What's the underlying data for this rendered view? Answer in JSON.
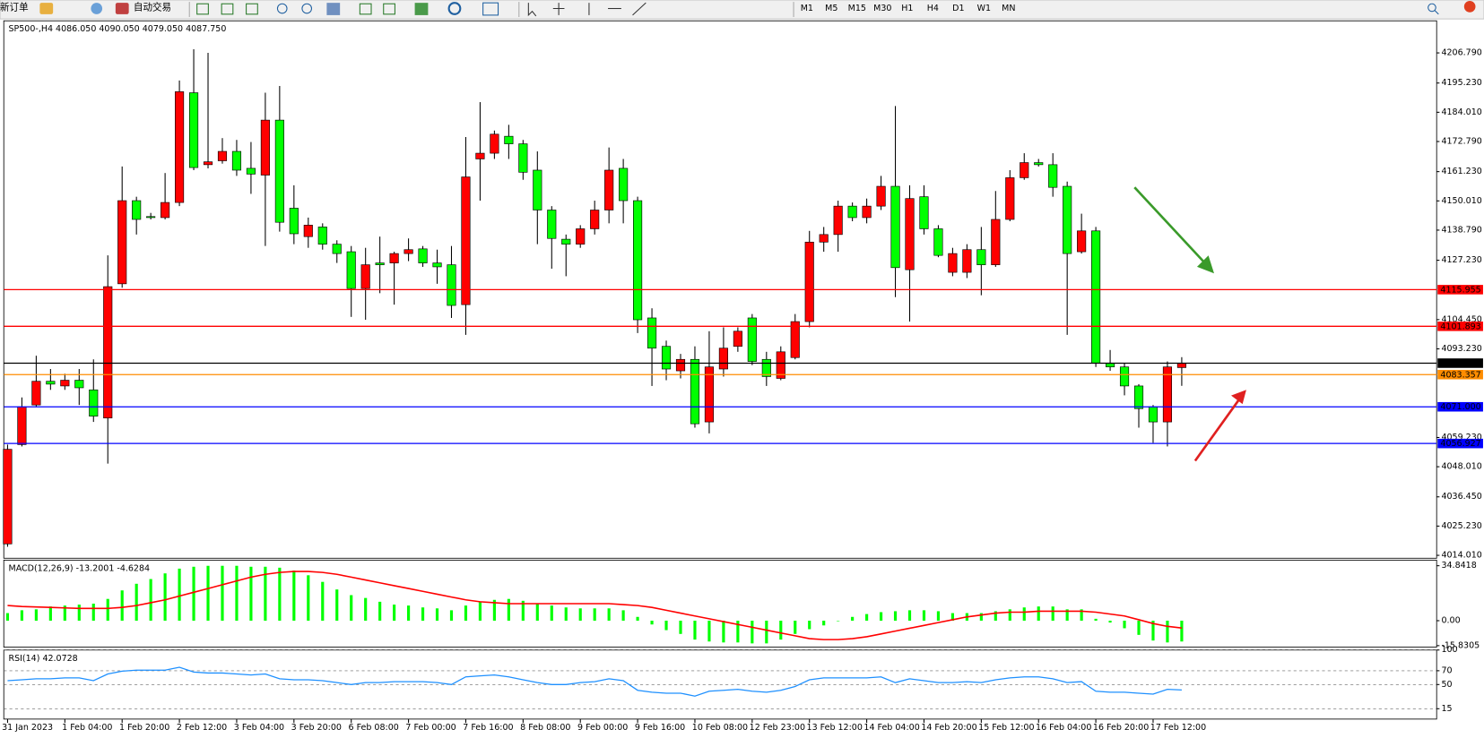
{
  "toolbar": {
    "new_order": "新订单",
    "auto_trading": "自动交易",
    "periods": [
      "M1",
      "M5",
      "M15",
      "M30",
      "H1",
      "H4",
      "D1",
      "W1",
      "MN"
    ]
  },
  "chart_data": [
    {
      "type": "candlestick",
      "title": "SP500-,H4  4086.050 4090.050 4079.050 4087.750",
      "categories": [
        "31 Jan 2023",
        null,
        null,
        null,
        "1 Feb 04:00",
        null,
        null,
        null,
        "1 Feb 20:00",
        null,
        null,
        null,
        "2 Feb 12:00",
        null,
        null,
        null,
        "3 Feb 04:00",
        null,
        null,
        null,
        "3 Feb 20:00",
        null,
        null,
        null,
        "6 Feb 08:00",
        null,
        null,
        null,
        "7 Feb 00:00",
        null,
        null,
        null,
        "7 Feb 16:00",
        null,
        null,
        null,
        "8 Feb 08:00",
        null,
        null,
        null,
        "9 Feb 00:00",
        null,
        null,
        null,
        "9 Feb 16:00",
        null,
        null,
        null,
        "10 Feb 08:00",
        null,
        null,
        null,
        "12 Feb 23:00",
        null,
        null,
        null,
        "13 Feb 12:00",
        null,
        null,
        null,
        "14 Feb 04:00",
        null,
        null,
        null,
        "14 Feb 20:00",
        null,
        null,
        null,
        "15 Feb 12:00",
        null,
        null,
        null,
        "16 Feb 04:00",
        null,
        null,
        null,
        "16 Feb 20:00",
        null,
        null,
        null,
        "17 Feb 12:00",
        null,
        null
      ],
      "open": [
        4018.4,
        4056.5,
        4071.7,
        4080.8,
        4079.0,
        4081.2,
        4077.5,
        4066.7,
        4118.2,
        4150.1,
        4144.0,
        4143.6,
        4149.4,
        4191.5,
        4163.9,
        4165.4,
        4169.0,
        4162.5,
        4159.9,
        4181.0,
        4147.2,
        4136.3,
        4140.0,
        4133.4,
        4130.5,
        4116.4,
        4126.2,
        4126.2,
        4129.8,
        4131.6,
        4126.2,
        4125.5,
        4110.2,
        4166.1,
        4168.3,
        4174.8,
        4171.9,
        4161.8,
        4146.5,
        4135.3,
        4133.4,
        4139.3,
        4146.5,
        4162.5,
        4150.1,
        4105.1,
        4094.2,
        4084.8,
        4089.2,
        4065.2,
        4085.5,
        4094.2,
        4105.1,
        4089.2,
        4081.9,
        4089.9,
        4103.7,
        4134.2,
        4137.1,
        4148.0,
        4143.6,
        4148.0,
        4155.6,
        4123.6,
        4151.6,
        4139.3,
        4122.6,
        4122.6,
        4131.3,
        4125.5,
        4142.9,
        4158.9,
        4164.7,
        4163.9,
        4155.6,
        4130.5,
        4138.5,
        4087.7,
        4086.3,
        4079.0,
        4071.0,
        4065.2,
        4086.05
      ],
      "high": [
        4056.5,
        4074.6,
        4090.6,
        4085.5,
        4083.7,
        4085.5,
        4089.2,
        4129.1,
        4163.2,
        4151.6,
        4145.4,
        4160.7,
        4196.2,
        4208.2,
        4206.8,
        4174.1,
        4173.4,
        4172.6,
        4191.5,
        4194.1,
        4156.0,
        4143.6,
        4141.4,
        4134.9,
        4132.7,
        4132.0,
        4136.3,
        4130.5,
        4135.6,
        4132.7,
        4131.3,
        4132.7,
        4174.5,
        4187.9,
        4177.0,
        4179.2,
        4173.4,
        4169.0,
        4148.0,
        4137.1,
        4140.7,
        4150.1,
        4170.5,
        4166.1,
        4151.6,
        4108.8,
        4096.4,
        4091.3,
        4094.2,
        4100.0,
        4101.5,
        4101.5,
        4106.6,
        4092.1,
        4094.2,
        4106.6,
        4138.5,
        4140.0,
        4150.1,
        4149.4,
        4150.9,
        4159.6,
        4186.4,
        4156.0,
        4156.0,
        4140.7,
        4132.0,
        4133.4,
        4140.0,
        4153.8,
        4161.8,
        4168.3,
        4166.1,
        4168.3,
        4157.4,
        4145.1,
        4140.0,
        4092.8,
        4087.7,
        4079.7,
        4071.7,
        4088.4,
        4090.05
      ],
      "low": [
        4017.3,
        4055.8,
        4071.0,
        4077.5,
        4077.5,
        4071.7,
        4065.2,
        4049.2,
        4116.7,
        4137.1,
        4142.9,
        4142.9,
        4148.0,
        4161.8,
        4162.5,
        4164.3,
        4159.6,
        4152.7,
        4132.7,
        4138.2,
        4133.4,
        4132.0,
        4131.3,
        4126.2,
        4105.5,
        4104.4,
        4114.6,
        4110.2,
        4126.9,
        4124.7,
        4118.2,
        4105.1,
        4098.6,
        4150.1,
        4166.1,
        4166.1,
        4158.1,
        4133.4,
        4124.0,
        4121.1,
        4132.0,
        4137.1,
        4141.4,
        4141.4,
        4099.3,
        4079.0,
        4081.2,
        4081.9,
        4063.0,
        4060.8,
        4082.6,
        4092.1,
        4087.0,
        4079.0,
        4081.2,
        4089.2,
        4101.5,
        4130.5,
        4130.5,
        4142.2,
        4141.4,
        4146.5,
        4113.1,
        4103.7,
        4137.1,
        4128.4,
        4121.1,
        4120.4,
        4113.8,
        4124.7,
        4142.2,
        4158.1,
        4163.2,
        4151.6,
        4098.6,
        4129.8,
        4086.3,
        4084.8,
        4075.4,
        4063.0,
        4057.2,
        4055.8,
        4079.05
      ],
      "close": [
        4054.7,
        4071.0,
        4080.8,
        4079.7,
        4081.2,
        4078.3,
        4067.4,
        4117.1,
        4150.1,
        4142.9,
        4143.6,
        4149.4,
        4191.9,
        4162.8,
        4165.0,
        4169.0,
        4161.8,
        4160.3,
        4181.0,
        4141.8,
        4137.4,
        4140.7,
        4133.4,
        4129.8,
        4116.4,
        4125.5,
        4125.5,
        4129.8,
        4131.3,
        4126.2,
        4124.7,
        4109.9,
        4159.2,
        4168.3,
        4175.6,
        4171.9,
        4161.0,
        4146.5,
        4135.6,
        4133.4,
        4139.3,
        4146.5,
        4161.8,
        4150.1,
        4104.4,
        4093.5,
        4085.5,
        4089.2,
        4064.5,
        4086.3,
        4093.5,
        4100.0,
        4088.4,
        4082.6,
        4092.1,
        4103.7,
        4134.2,
        4137.1,
        4148.0,
        4143.6,
        4148.0,
        4155.6,
        4124.4,
        4150.9,
        4139.3,
        4129.1,
        4129.8,
        4131.3,
        4125.5,
        4142.9,
        4158.9,
        4164.7,
        4163.9,
        4155.2,
        4129.8,
        4138.5,
        4087.7,
        4086.3,
        4079.0,
        4070.3,
        4065.2,
        4086.3,
        4087.75
      ],
      "up_color": "#ff0000",
      "down_color": "#00ff00",
      "ylim": [
        4012.9,
        4219.1
      ],
      "yticks": [
        {
          "value": 4206.79,
          "label": "4206.790"
        },
        {
          "value": 4195.23,
          "label": "4195.230"
        },
        {
          "value": 4184.01,
          "label": "4184.010"
        },
        {
          "value": 4172.79,
          "label": "4172.790"
        },
        {
          "value": 4161.23,
          "label": "4161.230"
        },
        {
          "value": 4150.01,
          "label": "4150.010"
        },
        {
          "value": 4138.79,
          "label": "4138.790"
        },
        {
          "value": 4127.23,
          "label": "4127.230"
        },
        {
          "value": 4104.45,
          "label": "4104.450"
        },
        {
          "value": 4093.23,
          "label": "4093.230"
        },
        {
          "value": 4059.23,
          "label": "4059.230"
        },
        {
          "value": 4048.01,
          "label": "4048.010"
        },
        {
          "value": 4036.45,
          "label": "4036.450"
        },
        {
          "value": 4025.23,
          "label": "4025.230"
        },
        {
          "value": 4014.01,
          "label": "4014.010"
        }
      ],
      "grid": false,
      "levels": [
        {
          "value": 4115.955,
          "label": "4115.955",
          "color": "#ff0000"
        },
        {
          "value": 4101.893,
          "label": "4101.893",
          "color": "#ff0000"
        },
        {
          "value": 4087.75,
          "label": "4087.750",
          "color": "#000000"
        },
        {
          "value": 4083.357,
          "label": "4083.357",
          "color": "#ff8c00"
        },
        {
          "value": 4071,
          "label": "4071.000",
          "color": "#0000ff"
        },
        {
          "value": 4056.927,
          "label": "4056.927",
          "color": "#0000ff"
        }
      ]
    },
    {
      "type": "macd",
      "title": "MACD(12,26,9) -13.2001 -4.6284",
      "histogram": {
        "color": "#00ff00",
        "values": [
          4.8,
          6.6,
          7.2,
          9.0,
          9.6,
          10.2,
          10.8,
          13.8,
          19.2,
          23.4,
          26.4,
          30.0,
          33.0,
          34.2,
          34.8,
          34.8,
          34.8,
          34.2,
          34.2,
          33.6,
          31.8,
          28.8,
          24.6,
          19.8,
          16.2,
          14.4,
          12.0,
          10.2,
          9.6,
          8.4,
          7.8,
          6.6,
          9.6,
          12.0,
          13.2,
          13.8,
          12.6,
          10.8,
          9.6,
          8.4,
          7.8,
          7.8,
          7.8,
          6.6,
          2.4,
          -2.4,
          -6.0,
          -8.4,
          -12.0,
          -13.2,
          -13.8,
          -13.8,
          -14.4,
          -14.4,
          -12.0,
          -8.4,
          -5.4,
          -3.0,
          0.0,
          2.4,
          4.2,
          5.4,
          6.0,
          6.6,
          6.6,
          6.0,
          4.8,
          4.8,
          4.8,
          6.0,
          7.2,
          8.4,
          9.0,
          9.0,
          7.2,
          7.2,
          1.2,
          -1.2,
          -4.8,
          -9.0,
          -12.6,
          -13.8,
          -13.2001
        ]
      },
      "signal": {
        "color": "#ff0000",
        "values": [
          9.6,
          9.0,
          8.7,
          8.4,
          8.1,
          7.8,
          7.8,
          7.8,
          8.4,
          9.6,
          11.4,
          13.2,
          15.6,
          18.0,
          20.4,
          22.8,
          25.2,
          27.6,
          29.4,
          30.6,
          31.2,
          31.2,
          30.6,
          29.4,
          27.6,
          25.8,
          24.0,
          22.2,
          20.4,
          18.6,
          16.8,
          15.0,
          13.2,
          12.0,
          11.4,
          10.8,
          10.8,
          10.8,
          10.8,
          10.8,
          10.8,
          10.8,
          10.8,
          10.2,
          9.6,
          8.4,
          6.6,
          4.8,
          3.0,
          1.2,
          -0.6,
          -2.4,
          -4.2,
          -6.0,
          -7.8,
          -9.6,
          -11.4,
          -12.0,
          -12.0,
          -11.4,
          -10.2,
          -8.4,
          -6.6,
          -4.8,
          -3.0,
          -1.2,
          0.6,
          2.4,
          3.6,
          4.8,
          5.4,
          5.4,
          6.0,
          6.0,
          6.0,
          6.0,
          5.4,
          4.2,
          3.0,
          0.6,
          -1.8,
          -3.6,
          -4.6284
        ]
      },
      "ylim": [
        -16.8,
        38.4
      ],
      "yticks": [
        34.8418,
        {
          "value": 0,
          "label": "0.00"
        },
        -15.8305
      ],
      "grid": false
    },
    {
      "type": "line",
      "title": "RSI(14) 42.0728",
      "color": "#1e90ff",
      "values": [
        55.6,
        56.9,
        58.3,
        58.3,
        59.7,
        59.7,
        55.6,
        65.3,
        69.4,
        70.8,
        70.8,
        70.8,
        75.0,
        68.1,
        66.7,
        66.7,
        65.3,
        63.9,
        65.3,
        58.3,
        56.9,
        56.9,
        55.6,
        52.8,
        50.0,
        52.8,
        52.8,
        54.2,
        54.2,
        54.2,
        52.8,
        50.0,
        61.1,
        62.5,
        63.9,
        61.1,
        56.9,
        52.8,
        50.0,
        50.0,
        52.8,
        54.2,
        58.3,
        55.6,
        41.7,
        38.9,
        37.5,
        37.5,
        33.3,
        40.3,
        41.7,
        43.1,
        40.3,
        38.9,
        41.7,
        47.2,
        56.9,
        59.7,
        59.7,
        59.7,
        59.7,
        61.1,
        52.8,
        58.3,
        55.6,
        52.8,
        52.8,
        54.2,
        52.8,
        56.9,
        59.7,
        61.1,
        61.1,
        58.3,
        52.8,
        54.2,
        40.3,
        38.9,
        38.9,
        37.5,
        36.1,
        43.1,
        42.0728
      ],
      "ylim": [
        0,
        100
      ],
      "yticks": [
        100,
        70,
        50,
        15
      ],
      "grid": true
    }
  ]
}
